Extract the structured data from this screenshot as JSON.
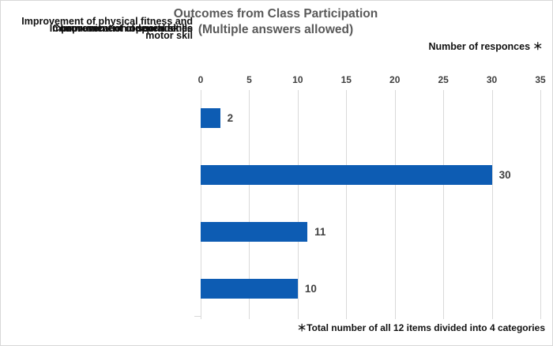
{
  "header": {
    "title_line1": "Outcomes from Class Participation",
    "title_line2": "(Multiple answers allowed)",
    "axis_note": "Number of responces ＊"
  },
  "footnote": "＊Total number of all 12 items divided into 4 categories",
  "colors": {
    "bar": "#0d5cb3",
    "gridline": "#d9d9d9",
    "title_text": "#595959",
    "tick_text": "#404040"
  },
  "chart_data": {
    "type": "bar",
    "orientation": "horizontal",
    "title": "Outcomes from Class Participation (Multiple answers allowed)",
    "xlabel": "Number of responces",
    "categories": [
      "Improvement of physical fitness and motor skil",
      "Improvement of social skills",
      "Communication opportunities",
      "Improvement of independence"
    ],
    "values": [
      30,
      11,
      10,
      2
    ],
    "xlim": [
      0,
      35
    ],
    "xticks": [
      0,
      5,
      10,
      15,
      20,
      25,
      30,
      35
    ],
    "grid": true,
    "legend": false,
    "data_labels": true
  }
}
